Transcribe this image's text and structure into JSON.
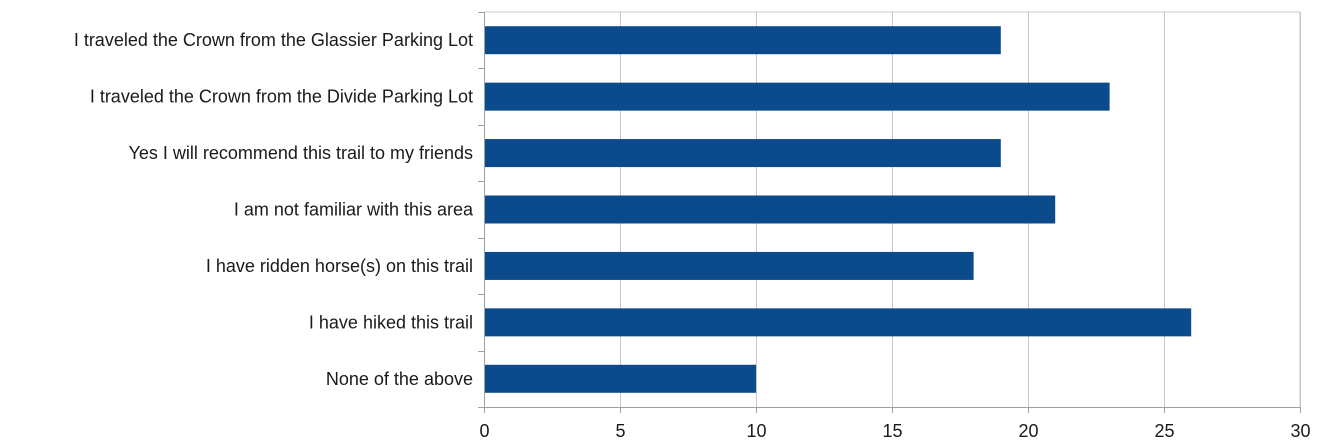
{
  "chart_data": {
    "type": "bar",
    "orientation": "horizontal",
    "title": "",
    "xlabel": "",
    "ylabel": "",
    "categories": [
      "I traveled the Crown from the Glassier Parking Lot",
      "I traveled the Crown from the Divide Parking Lot",
      "Yes I will recommend this trail to my friends",
      "I am not familiar with this area",
      "I have ridden horse(s) on this trail",
      "I have hiked this trail",
      "None of the above"
    ],
    "values": [
      19,
      23,
      19,
      21,
      18,
      26,
      10
    ],
    "xlim": [
      0,
      30
    ],
    "xticks": [
      0,
      5,
      10,
      15,
      20,
      25,
      30
    ],
    "xtick_labels": [
      "0",
      "5",
      "10",
      "15",
      "20",
      "25",
      "30"
    ],
    "grid": "vertical",
    "legend": "none",
    "colors": {
      "bar": "#0b4a8b",
      "grid": "#c8c8c8",
      "axis": "#a0a0a0"
    }
  }
}
